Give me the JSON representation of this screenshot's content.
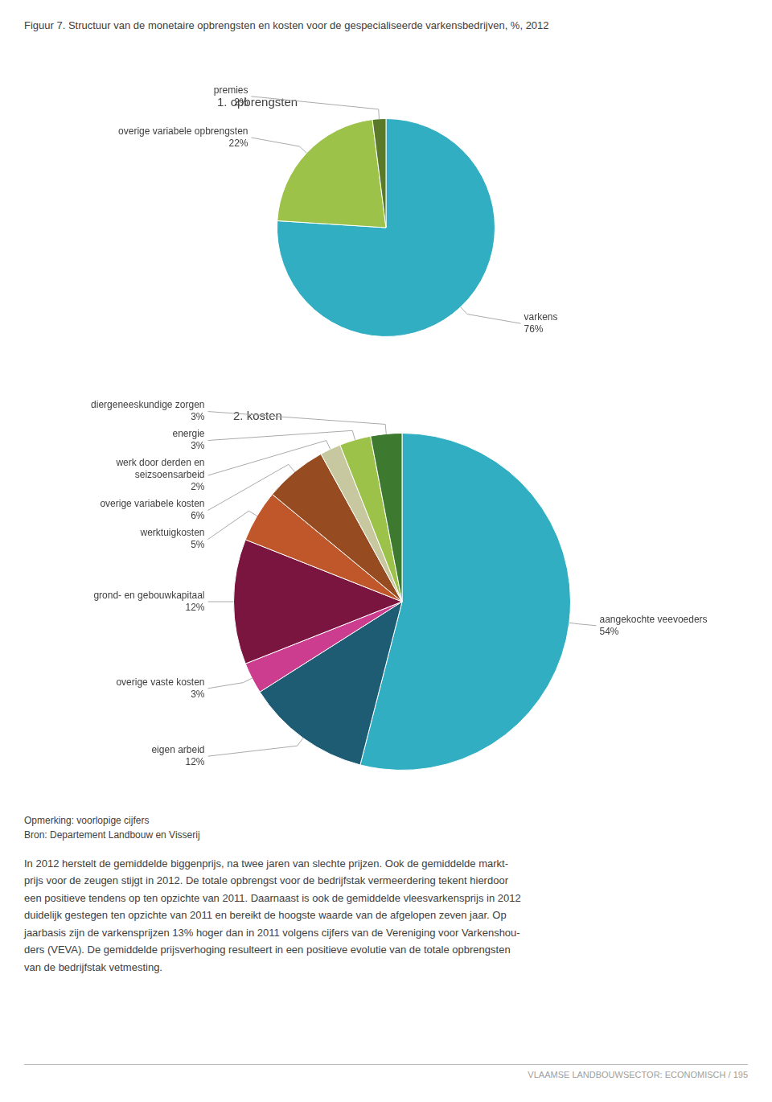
{
  "title": "Figuur 7. Structuur van de monetaire opbrengsten en kosten voor de gespecialiseerde varkensbedrijven, %, 2012",
  "chart_data": [
    {
      "type": "pie",
      "title": "1. opbrengsten",
      "categories": [
        "varkens",
        "overige variabele opbrengsten",
        "premies"
      ],
      "values": [
        76,
        22,
        2
      ],
      "value_labels": [
        "76%",
        "22%",
        "2%"
      ],
      "colors": [
        "#31aec2",
        "#9dc24a",
        "#5a7a2a"
      ],
      "data_labels": true
    },
    {
      "type": "pie",
      "title": "2. kosten",
      "categories": [
        "aangekochte veevoeders",
        "eigen arbeid",
        "overige vaste kosten",
        "grond- en gebouwkapitaal",
        "werktuigkosten",
        "overige variabele kosten",
        "werk door derden en seizsoensarbeid",
        "energie",
        "diergeneeskundige zorgen"
      ],
      "values": [
        54,
        12,
        3,
        12,
        5,
        6,
        2,
        3,
        3
      ],
      "value_labels": [
        "54%",
        "12%",
        "3%",
        "12%",
        "5%",
        "6%",
        "2%",
        "3%",
        "3%"
      ],
      "colors": [
        "#31aec2",
        "#1d5c73",
        "#cc3d8f",
        "#7a1540",
        "#c0572a",
        "#964b20",
        "#c8c8a0",
        "#9dc24a",
        "#3d7a30"
      ],
      "data_labels": true
    }
  ],
  "note": "Opmerking: voorlopige cijfers",
  "source": "Bron: Departement Landbouw en Visserij",
  "body_text": "In 2012 herstelt de gemiddelde biggenprijs, na twee jaren van slechte prijzen. Ook de gemiddelde markt-\nprijs voor de zeugen stijgt in 2012. De totale opbrengst voor de bedrijfstak vermeerdering tekent hierdoor\neen positieve tendens op ten opzichte van 2011. Daarnaast is ook de gemiddelde vleesvarkensprijs in 2012\nduidelijk gestegen ten opzichte van 2011 en bereikt de hoogste waarde van de afgelopen zeven jaar. Op\njaarbasis zijn de varkensprijzen 13% hoger dan in 2011 volgens cijfers van de Vereniging voor Varkenshou-\nders (VEVA). De gemiddelde prijsverhoging resulteert in een positieve evolutie van de totale opbrengsten\nvan de bedrijfstak vetmesting.",
  "footer": "VLAAMSE LANDBOUWSECTOR: ECONOMISCH / 195"
}
